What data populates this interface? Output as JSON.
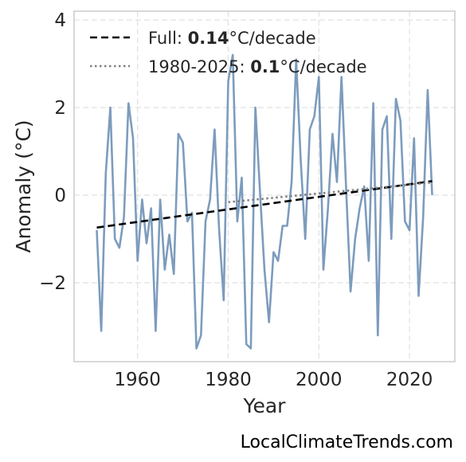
{
  "chart_data": {
    "type": "line",
    "title": "",
    "xlabel": "Year",
    "ylabel": "Anomaly (°C)",
    "xlim": [
      1946,
      2030
    ],
    "ylim": [
      -3.8,
      4.2
    ],
    "xticks": [
      1960,
      1980,
      2000,
      2020
    ],
    "yticks": [
      4,
      2,
      0,
      -2
    ],
    "ytick_labels": [
      "4",
      "2",
      "0",
      "−2"
    ],
    "grid": true,
    "legend_position": "top-left",
    "series": [
      {
        "style": "solid",
        "color": "#7d9cbd",
        "x": [
          1951,
          1952,
          1953,
          1954,
          1955,
          1956,
          1957,
          1958,
          1959,
          1960,
          1961,
          1962,
          1963,
          1964,
          1965,
          1966,
          1967,
          1968,
          1969,
          1970,
          1971,
          1972,
          1973,
          1974,
          1975,
          1976,
          1977,
          1978,
          1979,
          1980,
          1981,
          1982,
          1983,
          1984,
          1985,
          1986,
          1987,
          1988,
          1989,
          1990,
          1991,
          1992,
          1993,
          1994,
          1995,
          1996,
          1997,
          1998,
          1999,
          2000,
          2001,
          2002,
          2003,
          2004,
          2005,
          2006,
          2007,
          2008,
          2009,
          2010,
          2011,
          2012,
          2013,
          2014,
          2015,
          2016,
          2017,
          2018,
          2019,
          2020,
          2021,
          2022,
          2023,
          2024,
          2025
        ],
        "values": [
          -0.8,
          -3.1,
          0.5,
          2.0,
          -1.0,
          -1.2,
          -0.5,
          2.1,
          1.3,
          -1.5,
          -0.1,
          -1.1,
          -0.3,
          -3.1,
          -0.1,
          -1.7,
          -0.9,
          -1.8,
          1.4,
          1.2,
          -0.6,
          -0.4,
          -3.5,
          -3.2,
          -0.6,
          -0.1,
          1.5,
          -0.8,
          -2.4,
          2.6,
          3.2,
          -0.6,
          0.4,
          -3.4,
          -3.5,
          2.0,
          0.1,
          -1.7,
          -2.9,
          -1.3,
          -1.5,
          -0.7,
          -0.7,
          0.3,
          3.1,
          0.8,
          -1.0,
          1.5,
          1.8,
          2.7,
          -1.7,
          -0.3,
          1.4,
          0.3,
          2.7,
          0.2,
          -2.2,
          -1.0,
          -0.3,
          0.2,
          -1.5,
          2.1,
          -3.2,
          1.5,
          1.8,
          -1.0,
          2.2,
          1.7,
          -0.6,
          -0.8,
          1.3,
          -2.3,
          -0.5,
          2.4,
          0.0
        ]
      },
      {
        "name": "Full",
        "style": "dashed",
        "color": "#000000",
        "x": [
          1951,
          2025
        ],
        "values": [
          -0.74,
          0.32
        ]
      },
      {
        "name": "1980-2025",
        "style": "dotted",
        "color": "#808080",
        "x": [
          1980,
          2025
        ],
        "values": [
          -0.16,
          0.29
        ]
      }
    ],
    "legend": [
      {
        "prefix": "Full: ",
        "value": "0.14",
        "suffix": "°C/decade",
        "style": "dashed",
        "color": "#000000"
      },
      {
        "prefix": "1980-2025: ",
        "value": "0.1",
        "suffix": "°C/decade",
        "style": "dotted",
        "color": "#808080"
      }
    ]
  },
  "watermark": "LocalClimateTrends.com"
}
